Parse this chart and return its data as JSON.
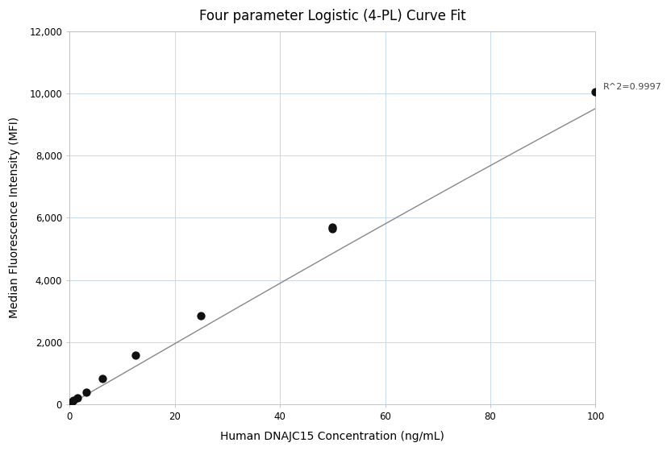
{
  "title": "Four parameter Logistic (4-PL) Curve Fit",
  "xlabel": "Human DNAJC15 Concentration (ng/mL)",
  "ylabel": "Median Fluorescence Intensity (MFI)",
  "r_squared": "R^2=0.9997",
  "xlim": [
    0,
    100
  ],
  "ylim": [
    0,
    12000
  ],
  "xticks": [
    0,
    20,
    40,
    60,
    80,
    100
  ],
  "yticks": [
    0,
    2000,
    4000,
    6000,
    8000,
    10000,
    12000
  ],
  "data_points_x": [
    0.39,
    0.78,
    1.56,
    3.125,
    6.25,
    12.5,
    25,
    50,
    50,
    100
  ],
  "data_points_y": [
    60,
    120,
    200,
    380,
    820,
    1580,
    2850,
    5650,
    5700,
    10050
  ],
  "curve_color": "#888888",
  "dot_color": "#111111",
  "dot_size": 55,
  "background_color": "#ffffff",
  "grid_color": "#c8daea",
  "title_fontsize": 12,
  "label_fontsize": 10,
  "annotation_fontsize": 8,
  "curve_4pl_A": 0.0,
  "curve_4pl_D": 150000.0,
  "curve_4pl_C": 1400.0,
  "curve_4pl_B": 1.02
}
